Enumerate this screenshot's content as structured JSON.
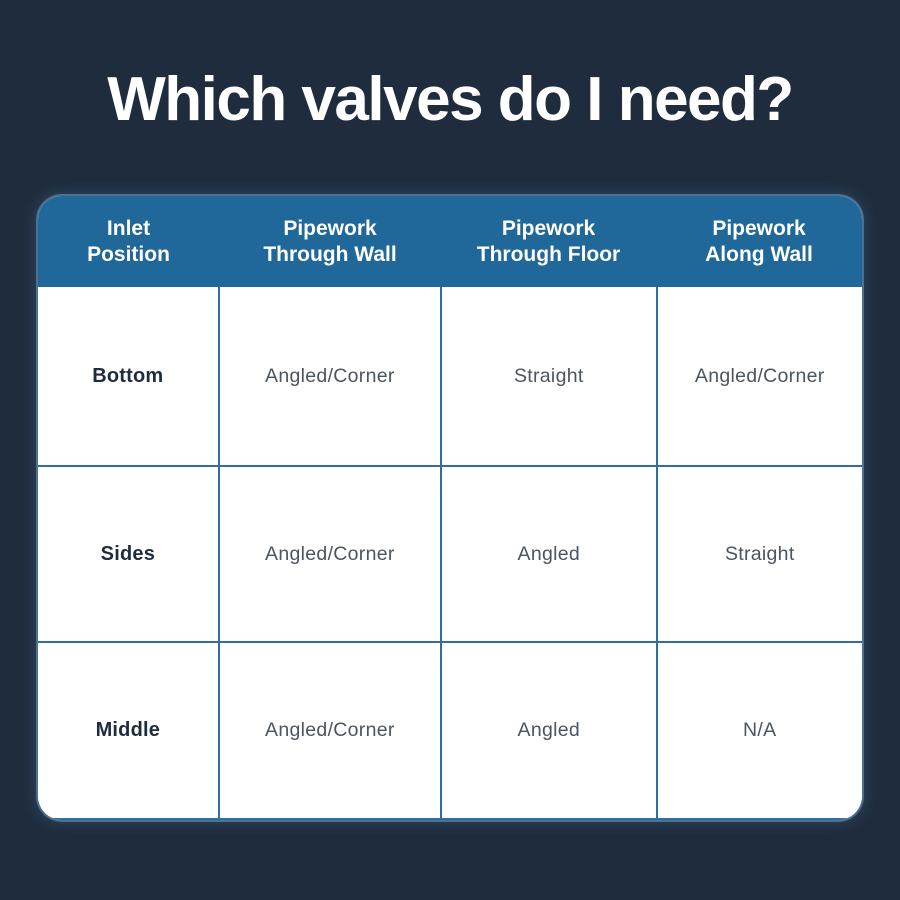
{
  "page": {
    "title": "Which valves do I need?"
  },
  "colors": {
    "background": "#1F2C3D",
    "header_blue": "#20689A",
    "grid_line_blue": "#2E6F9C",
    "card_white": "#FFFFFF",
    "title_text": "#FFFFFF",
    "row_label_text": "#1F2C3E",
    "cell_text": "#4A5561"
  },
  "table": {
    "headers": [
      {
        "line1": "Inlet",
        "line2": "Position"
      },
      {
        "line1": "Pipework",
        "line2": "Through Wall"
      },
      {
        "line1": "Pipework",
        "line2": "Through Floor"
      },
      {
        "line1": "Pipework",
        "line2": "Along Wall"
      }
    ]
  },
  "chart_data": {
    "type": "table",
    "title": "Which valves do I need?",
    "columns": [
      "Inlet Position",
      "Pipework Through Wall",
      "Pipework Through Floor",
      "Pipework Along Wall"
    ],
    "rows": [
      [
        "Bottom",
        "Angled/Corner",
        "Straight",
        "Angled/Corner"
      ],
      [
        "Sides",
        "Angled/Corner",
        "Angled",
        "Straight"
      ],
      [
        "Middle",
        "Angled/Corner",
        "Angled",
        "N/A"
      ]
    ]
  }
}
